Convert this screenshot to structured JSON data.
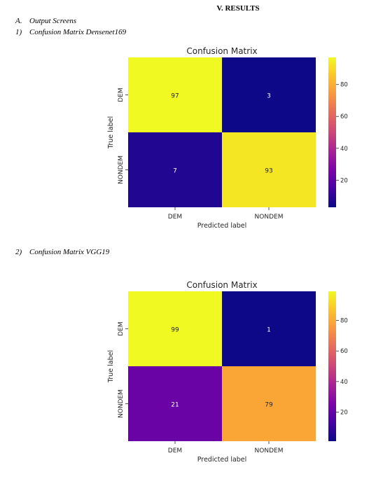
{
  "section_heading": "V.   RESULTS",
  "subsection_a": {
    "num": "A.",
    "text": "Output Screens"
  },
  "item1": {
    "num": "1)",
    "text": "Confusion Matrix Densenet169"
  },
  "item2": {
    "num": "2)",
    "text": "Confusion Matrix VGG19"
  },
  "chart_data": [
    {
      "type": "heatmap",
      "title": "Confusion Matrix",
      "xlabel": "Predicted label",
      "ylabel": "True label",
      "x_categories": [
        "DEM",
        "NONDEM"
      ],
      "y_categories": [
        "DEM",
        "NONDEM"
      ],
      "values": [
        [
          97,
          3
        ],
        [
          7,
          93
        ]
      ],
      "colorbar_ticks": [
        20,
        40,
        60,
        80
      ],
      "colorbar_range": [
        3,
        97
      ],
      "colormap": "plasma"
    },
    {
      "type": "heatmap",
      "title": "Confusion Matrix",
      "xlabel": "Predicted label",
      "ylabel": "True label",
      "x_categories": [
        "DEM",
        "NONDEM"
      ],
      "y_categories": [
        "DEM",
        "NONDEM"
      ],
      "values": [
        [
          99,
          1
        ],
        [
          21,
          79
        ]
      ],
      "colorbar_ticks": [
        20,
        40,
        60,
        80
      ],
      "colorbar_range": [
        1,
        99
      ],
      "colormap": "plasma"
    }
  ]
}
